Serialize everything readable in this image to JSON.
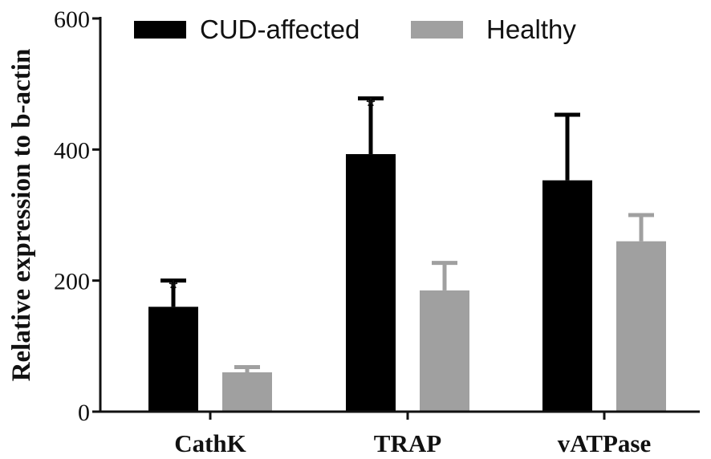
{
  "chart_data": {
    "type": "bar",
    "title": "",
    "xlabel": "",
    "ylabel": "Relative expression to b-actin",
    "ylim": [
      0,
      600
    ],
    "yticks": [
      0,
      200,
      400,
      600
    ],
    "categories": [
      "CathK",
      "TRAP",
      "vATPase"
    ],
    "legend_position": "top",
    "series": [
      {
        "name": "CUD-affected",
        "color": "#000000",
        "values": [
          160,
          393,
          353
        ],
        "errors": [
          40,
          85,
          100
        ],
        "significance": [
          "*",
          "*",
          ""
        ]
      },
      {
        "name": "Healthy",
        "color": "#a0a0a0",
        "values": [
          60,
          185,
          260
        ],
        "errors": [
          8,
          42,
          40
        ],
        "significance": [
          "",
          "",
          ""
        ]
      }
    ]
  }
}
